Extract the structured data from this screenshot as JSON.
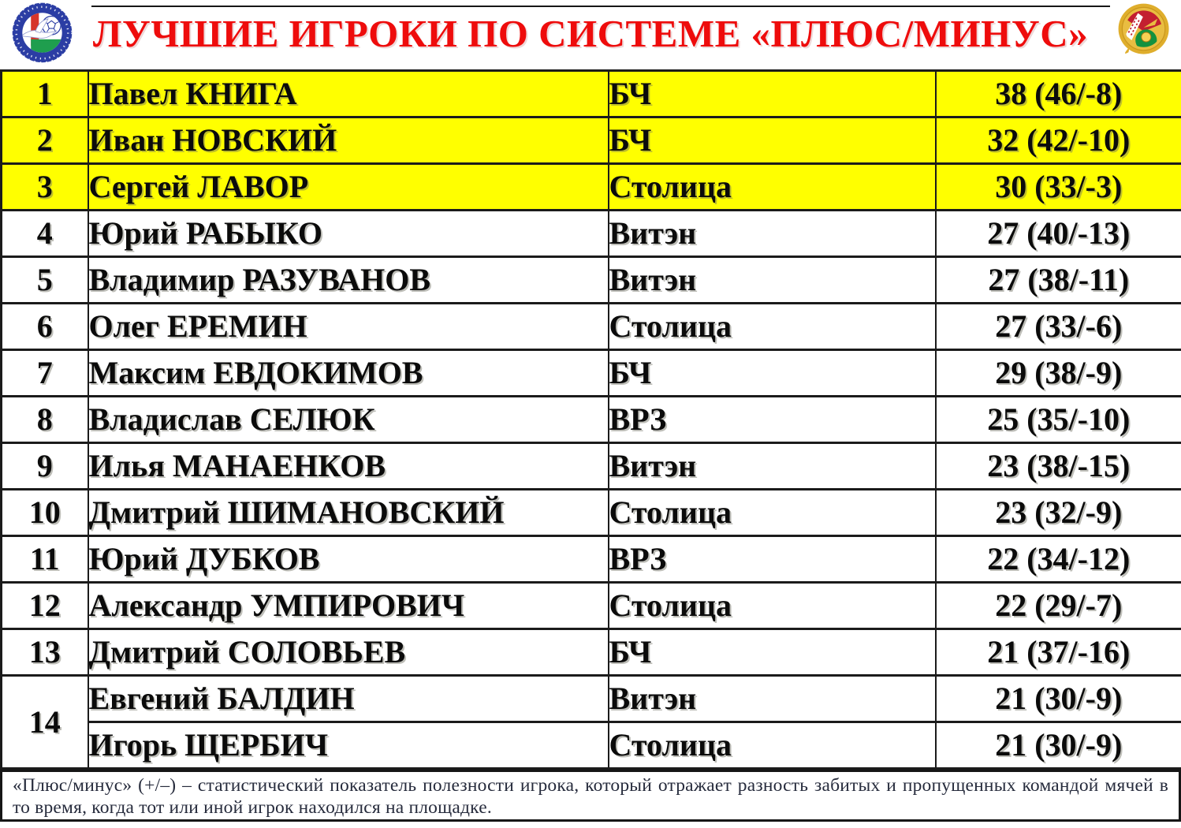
{
  "header": {
    "title": "ЛУЧШИЕ ИГРОКИ ПО СИСТЕМЕ «ПЛЮС/МИНУС»",
    "title_color": "#ee0c0c",
    "left_logo": "belarus-football-federation-emblem",
    "right_logo": "belarus-mini-football-association-emblem"
  },
  "table": {
    "highlight_color": "#ffff00",
    "columns": [
      "rank",
      "player",
      "team",
      "plus_minus"
    ],
    "rows": [
      {
        "rank": "1",
        "player": "Павел КНИГА",
        "team": "БЧ",
        "stat": "38 (46/-8)",
        "highlight": true
      },
      {
        "rank": "2",
        "player": "Иван НОВСКИЙ",
        "team": "БЧ",
        "stat": "32 (42/-10)",
        "highlight": true
      },
      {
        "rank": "3",
        "player": "Сергей ЛАВОР",
        "team": "Столица",
        "stat": "30 (33/-3)",
        "highlight": true
      },
      {
        "rank": "4",
        "player": "Юрий РАБЫКО",
        "team": "Витэн",
        "stat": "27 (40/-13)"
      },
      {
        "rank": "5",
        "player": "Владимир РАЗУВАНОВ",
        "team": "Витэн",
        "stat": "27 (38/-11)"
      },
      {
        "rank": "6",
        "player": "Олег ЕРЕМИН",
        "team": "Столица",
        "stat": "27 (33/-6)"
      },
      {
        "rank": "7",
        "player": "Максим ЕВДОКИМОВ",
        "team": "БЧ",
        "stat": "29 (38/-9)"
      },
      {
        "rank": "8",
        "player": "Владислав СЕЛЮК",
        "team": "ВРЗ",
        "stat": "25 (35/-10)"
      },
      {
        "rank": "9",
        "player": "Илья МАНАЕНКОВ",
        "team": "Витэн",
        "stat": "23 (38/-15)"
      },
      {
        "rank": "10",
        "player": "Дмитрий ШИМАНОВСКИЙ",
        "team": "Столица",
        "stat": "23 (32/-9)"
      },
      {
        "rank": "11",
        "player": "Юрий ДУБКОВ",
        "team": "ВРЗ",
        "stat": "22 (34/-12)"
      },
      {
        "rank": "12",
        "player": "Александр УМПИРОВИЧ",
        "team": "Столица",
        "stat": "22 (29/-7)"
      },
      {
        "rank": "13",
        "player": "Дмитрий СОЛОВЬЕВ",
        "team": "БЧ",
        "stat": "21 (37/-16)"
      },
      {
        "rank": "14",
        "rankspan": 2,
        "player": "Евгений БАЛДИН",
        "team": "Витэн",
        "stat": "21 (30/-9)"
      },
      {
        "player": "Игорь ЩЕРБИЧ",
        "team": "Столица",
        "stat": "21 (30/-9)"
      }
    ]
  },
  "footer": {
    "text": "«Плюс/минус» (+/–) – статистический показатель полезности игрока, который отражает разность забитых и пропущенных командой мячей в то время, когда тот или иной игрок находился на площадке."
  }
}
